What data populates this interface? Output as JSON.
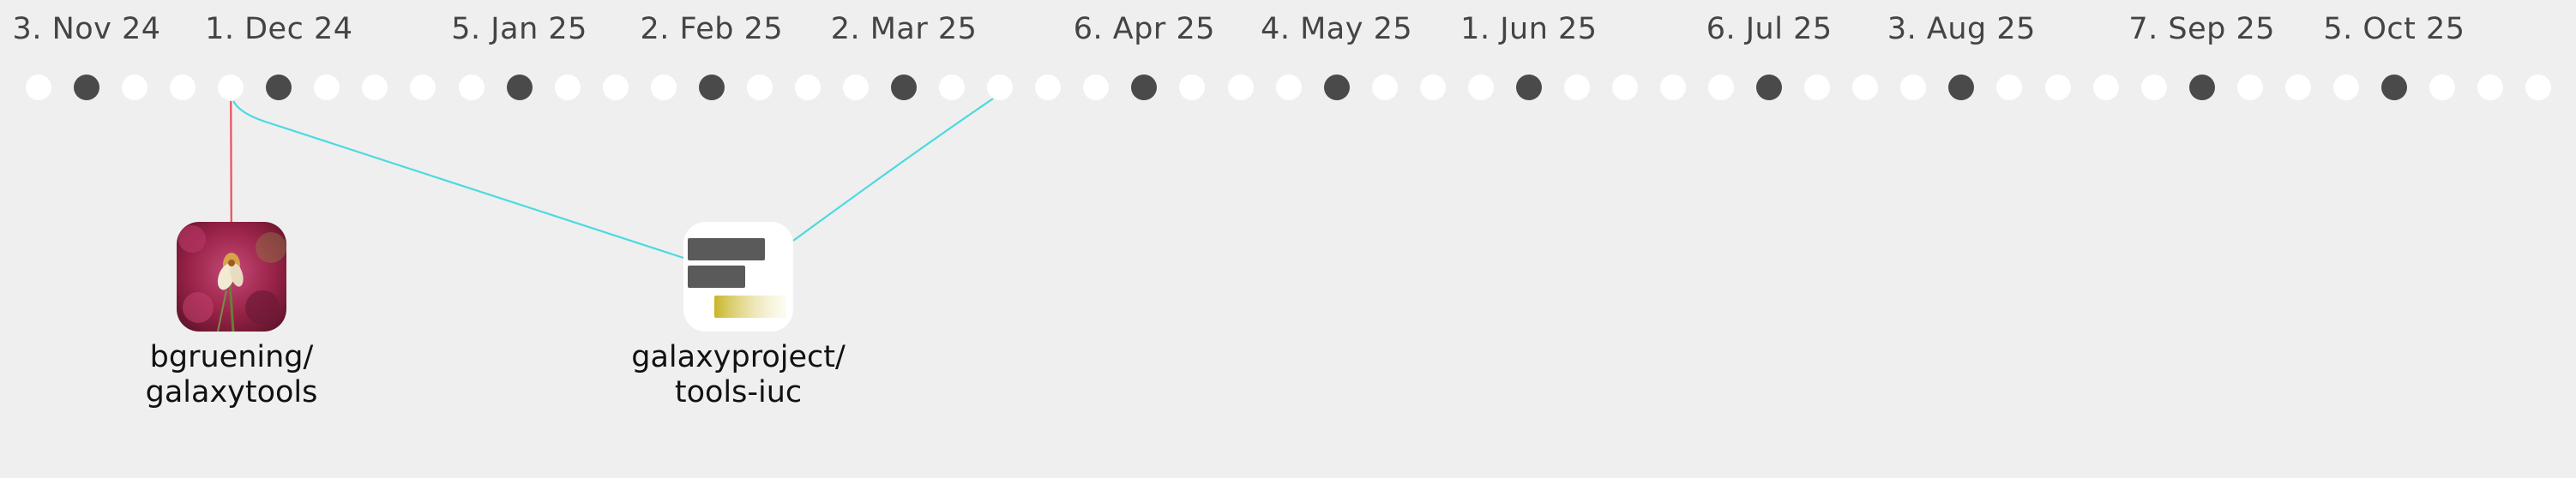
{
  "timeline": {
    "dates": [
      {
        "label": "3. Nov 24",
        "dot": 1
      },
      {
        "label": "1. Dec 24",
        "dot": 5
      },
      {
        "label": "5. Jan 25",
        "dot": 10
      },
      {
        "label": "2. Feb 25",
        "dot": 14
      },
      {
        "label": "2. Mar 25",
        "dot": 18
      },
      {
        "label": "6. Apr 25",
        "dot": 23
      },
      {
        "label": "4. May 25",
        "dot": 27
      },
      {
        "label": "1. Jun 25",
        "dot": 31
      },
      {
        "label": "6. Jul 25",
        "dot": 36
      },
      {
        "label": "3. Aug 25",
        "dot": 40
      },
      {
        "label": "7. Sep 25",
        "dot": 45
      },
      {
        "label": "5. Oct 25",
        "dot": 49
      }
    ],
    "dot_count": 53,
    "filled_dots": [
      1,
      5,
      10,
      14,
      18,
      23,
      27,
      31,
      36,
      40,
      45,
      49
    ],
    "dot_color": "#ffffff",
    "filled_color": "#4a4a4a"
  },
  "repos": [
    {
      "id": "galaxytools",
      "owner": "bgruening/",
      "name": "galaxytools",
      "icon": "flower-photo-avatar"
    },
    {
      "id": "tools-iuc",
      "owner": "galaxyproject/",
      "name": "tools-iuc",
      "icon": "bar-logo-avatar"
    }
  ],
  "links": [
    {
      "from_dot": 4,
      "to": "galaxytools",
      "color": "#e8505b"
    },
    {
      "from_dot": 4,
      "to": "tools-iuc",
      "color": "#4dd9e0"
    },
    {
      "from_dot": 20,
      "to": "tools-iuc",
      "color": "#4dd9e0"
    }
  ]
}
